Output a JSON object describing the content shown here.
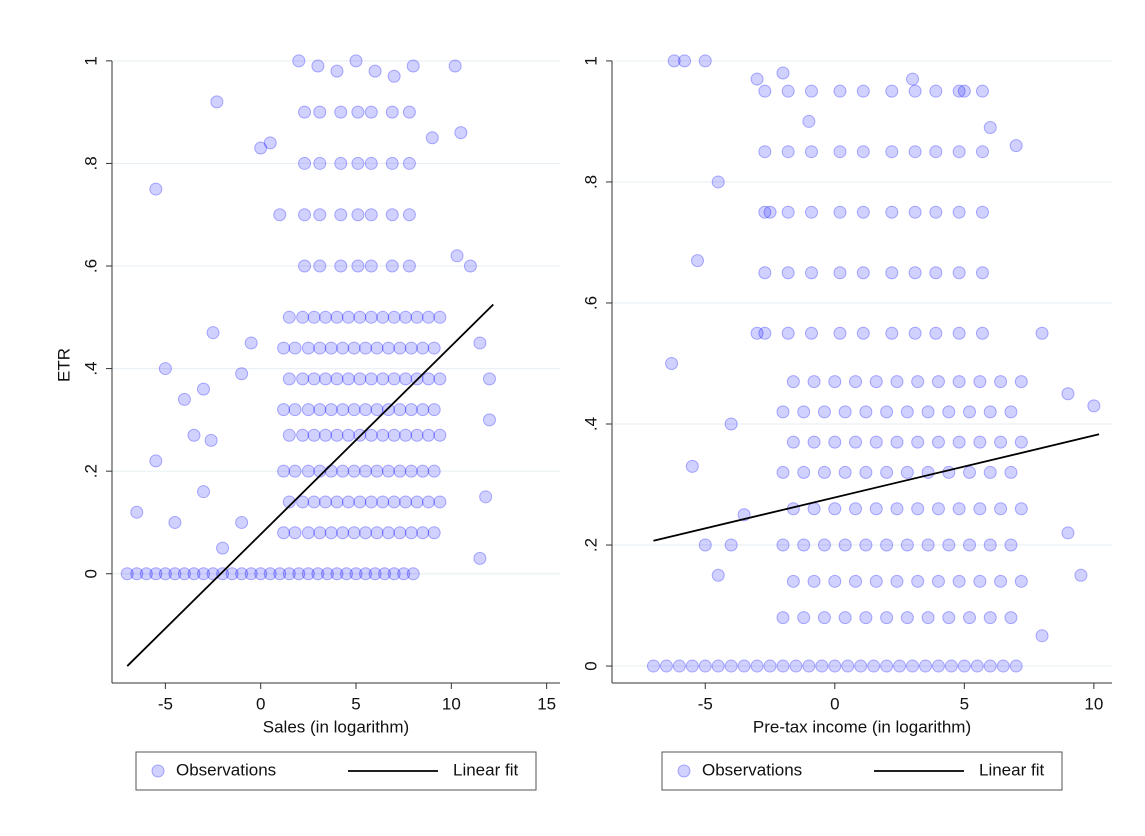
{
  "chart_data": [
    {
      "type": "scatter",
      "x_label": "Sales (in logarithm)",
      "y_label": "ETR",
      "xlim": [
        -7.8,
        15.7
      ],
      "ylim": [
        -0.213,
        1.027
      ],
      "xticks": [
        -5,
        0,
        5,
        10,
        15
      ],
      "yticks": [
        0,
        {
          "value": 0.2,
          "label": ".2"
        },
        {
          "value": 0.4,
          "label": ".4"
        },
        {
          "value": 0.6,
          "label": ".6"
        },
        {
          "value": 0.8,
          "label": ".8"
        },
        1
      ],
      "grid": true,
      "legend": "bottom",
      "series": [
        {
          "name": "Observations",
          "type": "scatter",
          "color": "#0000ff",
          "x": [
            -7,
            -6.5,
            -6,
            -5.5,
            -5,
            -4.5,
            -4,
            -3.5,
            -3,
            -2.5,
            -2,
            -1.5,
            -1,
            -0.5,
            0,
            0.5,
            1,
            1.5,
            2,
            2.5,
            3,
            3.5,
            4,
            4.5,
            5,
            5.5,
            6,
            6.5,
            7,
            7.5,
            8,
            -5.5,
            -2.3,
            -5,
            -2.5,
            -4,
            -3,
            -6.5,
            -5.5,
            -4.5,
            -3.5,
            -2.6,
            -3,
            -1,
            0,
            0.5,
            -0.5,
            1,
            2,
            3,
            4,
            5,
            6,
            7,
            8,
            9,
            10.2,
            10.5,
            12,
            11.5,
            12,
            11,
            10.3,
            11.8,
            11.5,
            -2,
            -1,
            1.2,
            1.2,
            1.2,
            1.2,
            1.8,
            1.8,
            1.8,
            1.8,
            2.5,
            2.5,
            2.5,
            2.5,
            3.1,
            3.1,
            3.1,
            3.1,
            3.7,
            3.7,
            3.7,
            3.7,
            4.3,
            4.3,
            4.3,
            4.3,
            4.9,
            4.9,
            4.9,
            4.9,
            5.5,
            5.5,
            5.5,
            5.5,
            6.1,
            6.1,
            6.1,
            6.1,
            6.7,
            6.7,
            6.7,
            6.7,
            7.3,
            7.3,
            7.3,
            7.3,
            7.9,
            7.9,
            7.9,
            7.9,
            8.5,
            8.5,
            8.5,
            8.5,
            9.1,
            9.1,
            9.1,
            9.1,
            1.5,
            1.5,
            1.5,
            1.5,
            2.2,
            2.2,
            2.2,
            2.2,
            2.8,
            2.8,
            2.8,
            2.8,
            3.4,
            3.4,
            3.4,
            3.4,
            4.0,
            4.0,
            4.0,
            4.0,
            4.6,
            4.6,
            4.6,
            4.6,
            5.2,
            5.2,
            5.2,
            5.2,
            5.8,
            5.8,
            5.8,
            5.8,
            6.4,
            6.4,
            6.4,
            6.4,
            7.0,
            7.0,
            7.0,
            7.0,
            7.6,
            7.6,
            7.6,
            7.6,
            8.2,
            8.2,
            8.2,
            8.2,
            8.8,
            8.8,
            8.8,
            8.8,
            9.4,
            9.4,
            9.4,
            9.4,
            2.3,
            2.3,
            2.3,
            2.3,
            3.1,
            3.1,
            3.1,
            3.1,
            4.2,
            4.2,
            4.2,
            4.2,
            5.1,
            5.1,
            5.1,
            5.1,
            5.8,
            5.8,
            5.8,
            5.8,
            6.9,
            6.9,
            6.9,
            6.9,
            7.8,
            7.8,
            7.8,
            7.8
          ],
          "values": [
            0,
            0,
            0,
            0,
            0,
            0,
            0,
            0,
            0,
            0,
            0,
            0,
            0,
            0,
            0,
            0,
            0,
            0,
            0,
            0,
            0,
            0,
            0,
            0,
            0,
            0,
            0,
            0,
            0,
            0,
            0,
            0.75,
            0.92,
            0.4,
            0.47,
            0.34,
            0.36,
            0.12,
            0.22,
            0.1,
            0.27,
            0.26,
            0.16,
            0.39,
            0.83,
            0.84,
            0.45,
            0.7,
            1,
            0.99,
            0.98,
            1,
            0.98,
            0.97,
            0.99,
            0.85,
            0.99,
            0.86,
            0.38,
            0.45,
            0.3,
            0.6,
            0.62,
            0.15,
            0.03,
            0.05,
            0.1,
            0.08,
            0.2,
            0.32,
            0.44,
            0.08,
            0.2,
            0.32,
            0.44,
            0.08,
            0.2,
            0.32,
            0.44,
            0.08,
            0.2,
            0.32,
            0.44,
            0.08,
            0.2,
            0.32,
            0.44,
            0.08,
            0.2,
            0.32,
            0.44,
            0.08,
            0.2,
            0.32,
            0.44,
            0.08,
            0.2,
            0.32,
            0.44,
            0.08,
            0.2,
            0.32,
            0.44,
            0.08,
            0.2,
            0.32,
            0.44,
            0.08,
            0.2,
            0.32,
            0.44,
            0.08,
            0.2,
            0.32,
            0.44,
            0.08,
            0.2,
            0.32,
            0.44,
            0.08,
            0.2,
            0.32,
            0.44,
            0.14,
            0.27,
            0.38,
            0.5,
            0.14,
            0.27,
            0.38,
            0.5,
            0.14,
            0.27,
            0.38,
            0.5,
            0.14,
            0.27,
            0.38,
            0.5,
            0.14,
            0.27,
            0.38,
            0.5,
            0.14,
            0.27,
            0.38,
            0.5,
            0.14,
            0.27,
            0.38,
            0.5,
            0.14,
            0.27,
            0.38,
            0.5,
            0.14,
            0.27,
            0.38,
            0.5,
            0.14,
            0.27,
            0.38,
            0.5,
            0.14,
            0.27,
            0.38,
            0.5,
            0.14,
            0.27,
            0.38,
            0.5,
            0.14,
            0.27,
            0.38,
            0.5,
            0.14,
            0.27,
            0.38,
            0.5,
            0.6,
            0.7,
            0.8,
            0.9,
            0.6,
            0.7,
            0.8,
            0.9,
            0.6,
            0.7,
            0.8,
            0.9,
            0.6,
            0.7,
            0.8,
            0.9,
            0.6,
            0.7,
            0.8,
            0.9,
            0.6,
            0.7,
            0.8,
            0.9,
            0.6,
            0.7,
            0.8,
            0.9
          ]
        },
        {
          "name": "Linear fit",
          "type": "line",
          "color": "#000000",
          "x": [
            -7,
            12.2
          ],
          "values": [
            -0.18,
            0.525
          ]
        }
      ]
    },
    {
      "type": "scatter",
      "x_label": "Pre-tax income (in logarithm)",
      "xlim": [
        -8.6,
        10.7
      ],
      "ylim": [
        -0.028,
        1.023
      ],
      "xticks": [
        -5,
        0,
        5,
        10
      ],
      "yticks": [
        0,
        {
          "value": 0.2,
          "label": ".2"
        },
        {
          "value": 0.4,
          "label": ".4"
        },
        {
          "value": 0.6,
          "label": ".6"
        },
        {
          "value": 0.8,
          "label": ".8"
        },
        1
      ],
      "grid": true,
      "legend": "bottom",
      "series": [
        {
          "name": "Observations",
          "type": "scatter",
          "color": "#0000ff",
          "x": [
            -7,
            -6.5,
            -6,
            -5.5,
            -5,
            -4.5,
            -4,
            -3.5,
            -3,
            -2.5,
            -2,
            -1.5,
            -1,
            -0.5,
            0,
            0.5,
            1,
            1.5,
            2,
            2.5,
            3,
            3.5,
            4,
            4.5,
            5,
            5.5,
            6,
            6.5,
            7,
            -6.2,
            -5.8,
            -5,
            -6.3,
            -5.3,
            -5.5,
            -4,
            -5,
            -4,
            -3,
            -2,
            -3.5,
            -3,
            -2.5,
            8,
            9,
            10,
            9.5,
            8,
            9,
            -1,
            3,
            5,
            6,
            7,
            -4.5,
            -4.5,
            -2,
            -2,
            -2,
            -2,
            -1.2,
            -1.2,
            -1.2,
            -1.2,
            -0.4,
            -0.4,
            -0.4,
            -0.4,
            0.4,
            0.4,
            0.4,
            0.4,
            1.2,
            1.2,
            1.2,
            1.2,
            2,
            2,
            2,
            2,
            2.8,
            2.8,
            2.8,
            2.8,
            3.6,
            3.6,
            3.6,
            3.6,
            4.4,
            4.4,
            4.4,
            4.4,
            5.2,
            5.2,
            5.2,
            5.2,
            6,
            6,
            6,
            6,
            6.8,
            6.8,
            6.8,
            6.8,
            -1.6,
            -1.6,
            -1.6,
            -1.6,
            -0.8,
            -0.8,
            -0.8,
            -0.8,
            0,
            0,
            0,
            0,
            0.8,
            0.8,
            0.8,
            0.8,
            1.6,
            1.6,
            1.6,
            1.6,
            2.4,
            2.4,
            2.4,
            2.4,
            3.2,
            3.2,
            3.2,
            3.2,
            4,
            4,
            4,
            4,
            4.8,
            4.8,
            4.8,
            4.8,
            5.6,
            5.6,
            5.6,
            5.6,
            6.4,
            6.4,
            6.4,
            6.4,
            7.2,
            7.2,
            7.2,
            7.2,
            -2.7,
            -2.7,
            -2.7,
            -2.7,
            -2.7,
            -1.8,
            -1.8,
            -1.8,
            -1.8,
            -1.8,
            -0.9,
            -0.9,
            -0.9,
            -0.9,
            -0.9,
            0.2,
            0.2,
            0.2,
            0.2,
            0.2,
            1.1,
            1.1,
            1.1,
            1.1,
            1.1,
            2.2,
            2.2,
            2.2,
            2.2,
            2.2,
            3.1,
            3.1,
            3.1,
            3.1,
            3.1,
            3.9,
            3.9,
            3.9,
            3.9,
            3.9,
            4.8,
            4.8,
            4.8,
            4.8,
            4.8,
            5.7,
            5.7,
            5.7,
            5.7,
            5.7
          ],
          "values": [
            0,
            0,
            0,
            0,
            0,
            0,
            0,
            0,
            0,
            0,
            0,
            0,
            0,
            0,
            0,
            0,
            0,
            0,
            0,
            0,
            0,
            0,
            0,
            0,
            0,
            0,
            0,
            0,
            0,
            1,
            1,
            1,
            0.5,
            0.67,
            0.33,
            0.4,
            0.2,
            0.2,
            0.97,
            0.98,
            0.25,
            0.55,
            0.75,
            0.55,
            0.45,
            0.43,
            0.15,
            0.05,
            0.22,
            0.9,
            0.97,
            0.95,
            0.89,
            0.86,
            0.8,
            0.15,
            0.08,
            0.2,
            0.32,
            0.42,
            0.08,
            0.2,
            0.32,
            0.42,
            0.08,
            0.2,
            0.32,
            0.42,
            0.08,
            0.2,
            0.32,
            0.42,
            0.08,
            0.2,
            0.32,
            0.42,
            0.08,
            0.2,
            0.32,
            0.42,
            0.08,
            0.2,
            0.32,
            0.42,
            0.08,
            0.2,
            0.32,
            0.42,
            0.08,
            0.2,
            0.32,
            0.42,
            0.08,
            0.2,
            0.32,
            0.42,
            0.08,
            0.2,
            0.32,
            0.42,
            0.08,
            0.2,
            0.32,
            0.42,
            0.14,
            0.26,
            0.37,
            0.47,
            0.14,
            0.26,
            0.37,
            0.47,
            0.14,
            0.26,
            0.37,
            0.47,
            0.14,
            0.26,
            0.37,
            0.47,
            0.14,
            0.26,
            0.37,
            0.47,
            0.14,
            0.26,
            0.37,
            0.47,
            0.14,
            0.26,
            0.37,
            0.47,
            0.14,
            0.26,
            0.37,
            0.47,
            0.14,
            0.26,
            0.37,
            0.47,
            0.14,
            0.26,
            0.37,
            0.47,
            0.14,
            0.26,
            0.37,
            0.47,
            0.14,
            0.26,
            0.37,
            0.47,
            0.55,
            0.65,
            0.75,
            0.85,
            0.95,
            0.55,
            0.65,
            0.75,
            0.85,
            0.95,
            0.55,
            0.65,
            0.75,
            0.85,
            0.95,
            0.55,
            0.65,
            0.75,
            0.85,
            0.95,
            0.55,
            0.65,
            0.75,
            0.85,
            0.95,
            0.55,
            0.65,
            0.75,
            0.85,
            0.95,
            0.55,
            0.65,
            0.75,
            0.85,
            0.95,
            0.55,
            0.65,
            0.75,
            0.85,
            0.95,
            0.55,
            0.65,
            0.75,
            0.85,
            0.95,
            0.55,
            0.65,
            0.75,
            0.85,
            0.95
          ]
        },
        {
          "name": "Linear fit",
          "type": "line",
          "color": "#000000",
          "x": [
            -7,
            10.2
          ],
          "values": [
            0.207,
            0.383
          ]
        }
      ]
    }
  ]
}
